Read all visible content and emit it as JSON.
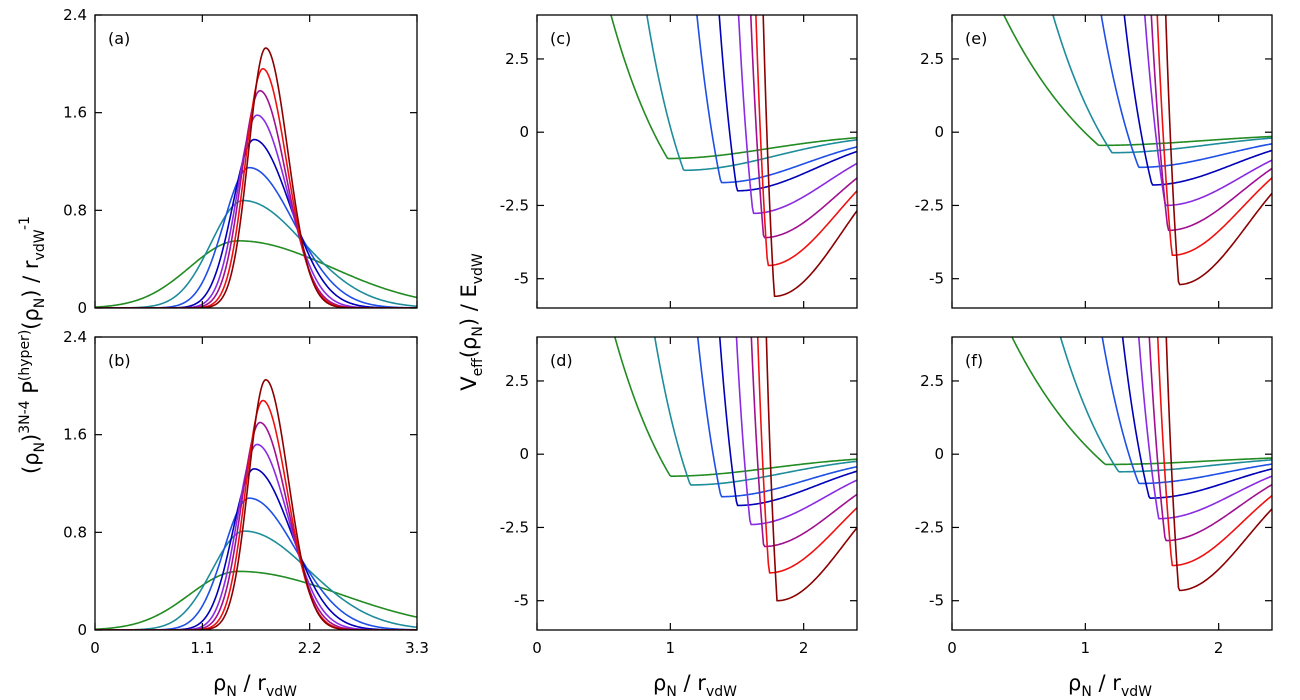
{
  "series_colors": [
    "#228B22",
    "#1E8C9A",
    "#1E4FE6",
    "#0000B8",
    "#1A1A7A",
    "#8A2BE2",
    "#A01090",
    "#C5135E",
    "#F01010",
    "#8B0000"
  ],
  "labels": {
    "left_ylabel": {
      "base": "(ρ",
      "sub1": "N",
      "mid": ")",
      "sup1": "3N-4",
      "mid2": " P",
      "sup2": "(hyper)",
      "mid3": "(ρ",
      "sub2": "N",
      "mid4": ") / r",
      "sub3": "vdW",
      "sup3": "-1"
    },
    "left_xlabel": {
      "base": "ρ",
      "sub1": "N",
      "mid": " / r",
      "sub2": "vdW"
    },
    "right_ylabel": {
      "base": "V",
      "sub1": "eff",
      "mid": "(ρ",
      "sub2": "N",
      "mid2": ") / E",
      "sub3": "vdW"
    },
    "mid_xlabel": {
      "base": "ρ",
      "sub1": "N",
      "mid": " / r",
      "sub2": "vdW"
    },
    "right_xlabel": {
      "base": "ρ",
      "sub1": "N",
      "mid": " / r",
      "sub2": "vdW"
    }
  },
  "chart_data": [
    {
      "panel": "(a)",
      "type": "line",
      "xlim": [
        0,
        3.3
      ],
      "ylim": [
        0,
        2.4
      ],
      "xticks": [
        0,
        1.1,
        2.2,
        3.3
      ],
      "xticklabels": [],
      "yticks": [
        0,
        0.8,
        1.6,
        2.4
      ],
      "yticklabels": [
        "0",
        "0.8",
        "1.6",
        "2.4"
      ],
      "peaks": [
        {
          "mu": 1.47,
          "sl": 0.5,
          "sr": 0.95,
          "h": 0.55
        },
        {
          "mu": 1.52,
          "sl": 0.33,
          "sr": 0.62,
          "h": 0.88
        },
        {
          "mu": 1.58,
          "sl": 0.26,
          "sr": 0.46,
          "h": 1.15
        },
        {
          "mu": 1.63,
          "sl": 0.22,
          "sr": 0.37,
          "h": 1.38
        },
        {
          "mu": 1.66,
          "sl": 0.2,
          "sr": 0.31,
          "h": 1.58
        },
        {
          "mu": 1.69,
          "sl": 0.19,
          "sr": 0.27,
          "h": 1.78
        },
        {
          "mu": 1.72,
          "sl": 0.18,
          "sr": 0.245,
          "h": 1.96
        },
        {
          "mu": 1.75,
          "sl": 0.175,
          "sr": 0.225,
          "h": 2.13
        }
      ],
      "series_color_index": [
        0,
        1,
        2,
        3,
        5,
        6,
        8,
        9
      ]
    },
    {
      "panel": "(b)",
      "type": "line",
      "xlim": [
        0,
        3.3
      ],
      "ylim": [
        0,
        2.4
      ],
      "xticks": [
        0,
        1.1,
        2.2,
        3.3
      ],
      "xticklabels": [
        "0",
        "1.1",
        "2.2",
        "3.3"
      ],
      "yticks": [
        0,
        0.8,
        1.6,
        2.4
      ],
      "yticklabels": [
        "0",
        "0.8",
        "1.6",
        "2.4"
      ],
      "peaks": [
        {
          "mu": 1.47,
          "sl": 0.5,
          "sr": 1.05,
          "h": 0.48
        },
        {
          "mu": 1.53,
          "sl": 0.33,
          "sr": 0.66,
          "h": 0.81
        },
        {
          "mu": 1.58,
          "sl": 0.26,
          "sr": 0.48,
          "h": 1.08
        },
        {
          "mu": 1.63,
          "sl": 0.22,
          "sr": 0.38,
          "h": 1.32
        },
        {
          "mu": 1.66,
          "sl": 0.2,
          "sr": 0.32,
          "h": 1.52
        },
        {
          "mu": 1.69,
          "sl": 0.19,
          "sr": 0.28,
          "h": 1.7
        },
        {
          "mu": 1.72,
          "sl": 0.18,
          "sr": 0.25,
          "h": 1.88
        },
        {
          "mu": 1.75,
          "sl": 0.175,
          "sr": 0.23,
          "h": 2.05
        }
      ],
      "series_color_index": [
        0,
        1,
        2,
        3,
        5,
        6,
        8,
        9
      ]
    },
    {
      "panel": "(c)",
      "type": "line",
      "xlim": [
        0,
        2.4
      ],
      "ylim": [
        -6,
        4
      ],
      "xticks": [
        0,
        1,
        2
      ],
      "xticklabels": [],
      "yticks": [
        2.5,
        0,
        -2.5,
        -5
      ],
      "yticklabels": [
        "2.5",
        "0",
        "-2.5",
        "-5"
      ],
      "wells": [
        {
          "x0": 0.98,
          "y0": -0.9,
          "a": 4.2,
          "b": 0.55,
          "k": 0.75,
          "yinf": -0.05
        },
        {
          "x0": 1.1,
          "y0": -1.3,
          "a": 4.6,
          "b": 0.36,
          "k": 0.88,
          "yinf": -0.05
        },
        {
          "x0": 1.38,
          "y0": -1.72,
          "a": 5.4,
          "b": 0.25,
          "k": 1.05,
          "yinf": -0.05
        },
        {
          "x0": 1.5,
          "y0": -2.0,
          "a": 5.9,
          "b": 0.19,
          "k": 1.2,
          "yinf": -0.05
        },
        {
          "x0": 1.62,
          "y0": -2.77,
          "a": 6.4,
          "b": 0.15,
          "k": 1.35,
          "yinf": -0.05
        },
        {
          "x0": 1.7,
          "y0": -3.6,
          "a": 6.9,
          "b": 0.13,
          "k": 1.45,
          "yinf": -0.05
        },
        {
          "x0": 1.73,
          "y0": -4.55,
          "a": 7.4,
          "b": 0.115,
          "k": 1.55,
          "yinf": -0.05
        },
        {
          "x0": 1.78,
          "y0": -5.6,
          "a": 7.9,
          "b": 0.105,
          "k": 1.62,
          "yinf": -0.05
        }
      ],
      "series_color_index": [
        0,
        1,
        2,
        3,
        5,
        6,
        8,
        9
      ]
    },
    {
      "panel": "(d)",
      "type": "line",
      "xlim": [
        0,
        2.4
      ],
      "ylim": [
        -6,
        4
      ],
      "xticks": [
        0,
        1,
        2
      ],
      "xticklabels": [
        "0",
        "1",
        "2"
      ],
      "yticks": [
        2.5,
        0,
        -2.5,
        -5
      ],
      "yticklabels": [
        "2.5",
        "0",
        "-2.5",
        "-5"
      ],
      "wells": [
        {
          "x0": 1.0,
          "y0": -0.75,
          "a": 4.2,
          "b": 0.55,
          "k": 0.75,
          "yinf": -0.05
        },
        {
          "x0": 1.15,
          "y0": -1.05,
          "a": 4.6,
          "b": 0.36,
          "k": 0.88,
          "yinf": -0.05
        },
        {
          "x0": 1.38,
          "y0": -1.45,
          "a": 5.4,
          "b": 0.25,
          "k": 1.05,
          "yinf": -0.05
        },
        {
          "x0": 1.5,
          "y0": -1.75,
          "a": 5.9,
          "b": 0.19,
          "k": 1.2,
          "yinf": -0.05
        },
        {
          "x0": 1.6,
          "y0": -2.4,
          "a": 6.4,
          "b": 0.15,
          "k": 1.35,
          "yinf": -0.05
        },
        {
          "x0": 1.7,
          "y0": -3.15,
          "a": 6.9,
          "b": 0.13,
          "k": 1.45,
          "yinf": -0.05
        },
        {
          "x0": 1.74,
          "y0": -4.05,
          "a": 7.4,
          "b": 0.115,
          "k": 1.55,
          "yinf": -0.05
        },
        {
          "x0": 1.8,
          "y0": -5.0,
          "a": 7.9,
          "b": 0.105,
          "k": 1.62,
          "yinf": -0.05
        }
      ],
      "series_color_index": [
        0,
        1,
        2,
        3,
        5,
        6,
        8,
        9
      ]
    },
    {
      "panel": "(e)",
      "type": "line",
      "xlim": [
        0,
        2.4
      ],
      "ylim": [
        -6,
        4
      ],
      "xticks": [
        0,
        1,
        2
      ],
      "xticklabels": [],
      "yticks": [
        2.5,
        0,
        -2.5,
        -5
      ],
      "yticklabels": [
        "2.5",
        "0",
        "-2.5",
        "-5"
      ],
      "wells": [
        {
          "x0": 1.1,
          "y0": -0.45,
          "a": 3.4,
          "b": 0.85,
          "k": 0.7,
          "yinf": -0.05
        },
        {
          "x0": 1.2,
          "y0": -0.7,
          "a": 3.8,
          "b": 0.55,
          "k": 0.85,
          "yinf": -0.05
        },
        {
          "x0": 1.4,
          "y0": -1.2,
          "a": 4.4,
          "b": 0.36,
          "k": 1.0,
          "yinf": -0.05
        },
        {
          "x0": 1.5,
          "y0": -1.8,
          "a": 5.0,
          "b": 0.27,
          "k": 1.15,
          "yinf": -0.05
        },
        {
          "x0": 1.6,
          "y0": -2.5,
          "a": 5.6,
          "b": 0.2,
          "k": 1.3,
          "yinf": -0.05
        },
        {
          "x0": 1.62,
          "y0": -3.35,
          "a": 6.2,
          "b": 0.16,
          "k": 1.4,
          "yinf": -0.05
        },
        {
          "x0": 1.65,
          "y0": -4.2,
          "a": 6.8,
          "b": 0.14,
          "k": 1.5,
          "yinf": -0.05
        },
        {
          "x0": 1.7,
          "y0": -5.2,
          "a": 7.4,
          "b": 0.12,
          "k": 1.58,
          "yinf": -0.05
        }
      ],
      "series_color_index": [
        0,
        1,
        2,
        3,
        5,
        6,
        8,
        9
      ]
    },
    {
      "panel": "(f)",
      "type": "line",
      "xlim": [
        0,
        2.4
      ],
      "ylim": [
        -6,
        4
      ],
      "xticks": [
        0,
        1,
        2
      ],
      "xticklabels": [
        "0",
        "1",
        "2"
      ],
      "yticks": [
        2.5,
        0,
        -2.5,
        -5
      ],
      "yticklabels": [
        "2.5",
        "0",
        "-2.5",
        "-5"
      ],
      "wells": [
        {
          "x0": 1.15,
          "y0": -0.35,
          "a": 3.4,
          "b": 0.85,
          "k": 0.7,
          "yinf": -0.05
        },
        {
          "x0": 1.25,
          "y0": -0.6,
          "a": 3.8,
          "b": 0.55,
          "k": 0.85,
          "yinf": -0.05
        },
        {
          "x0": 1.4,
          "y0": -1.0,
          "a": 4.4,
          "b": 0.36,
          "k": 1.0,
          "yinf": -0.05
        },
        {
          "x0": 1.48,
          "y0": -1.5,
          "a": 5.0,
          "b": 0.27,
          "k": 1.15,
          "yinf": -0.05
        },
        {
          "x0": 1.55,
          "y0": -2.2,
          "a": 5.6,
          "b": 0.2,
          "k": 1.3,
          "yinf": -0.05
        },
        {
          "x0": 1.6,
          "y0": -2.95,
          "a": 6.2,
          "b": 0.16,
          "k": 1.4,
          "yinf": -0.05
        },
        {
          "x0": 1.65,
          "y0": -3.8,
          "a": 6.8,
          "b": 0.14,
          "k": 1.5,
          "yinf": -0.05
        },
        {
          "x0": 1.7,
          "y0": -4.65,
          "a": 7.4,
          "b": 0.12,
          "k": 1.58,
          "yinf": -0.05
        }
      ],
      "series_color_index": [
        0,
        1,
        2,
        3,
        5,
        6,
        8,
        9
      ]
    }
  ]
}
